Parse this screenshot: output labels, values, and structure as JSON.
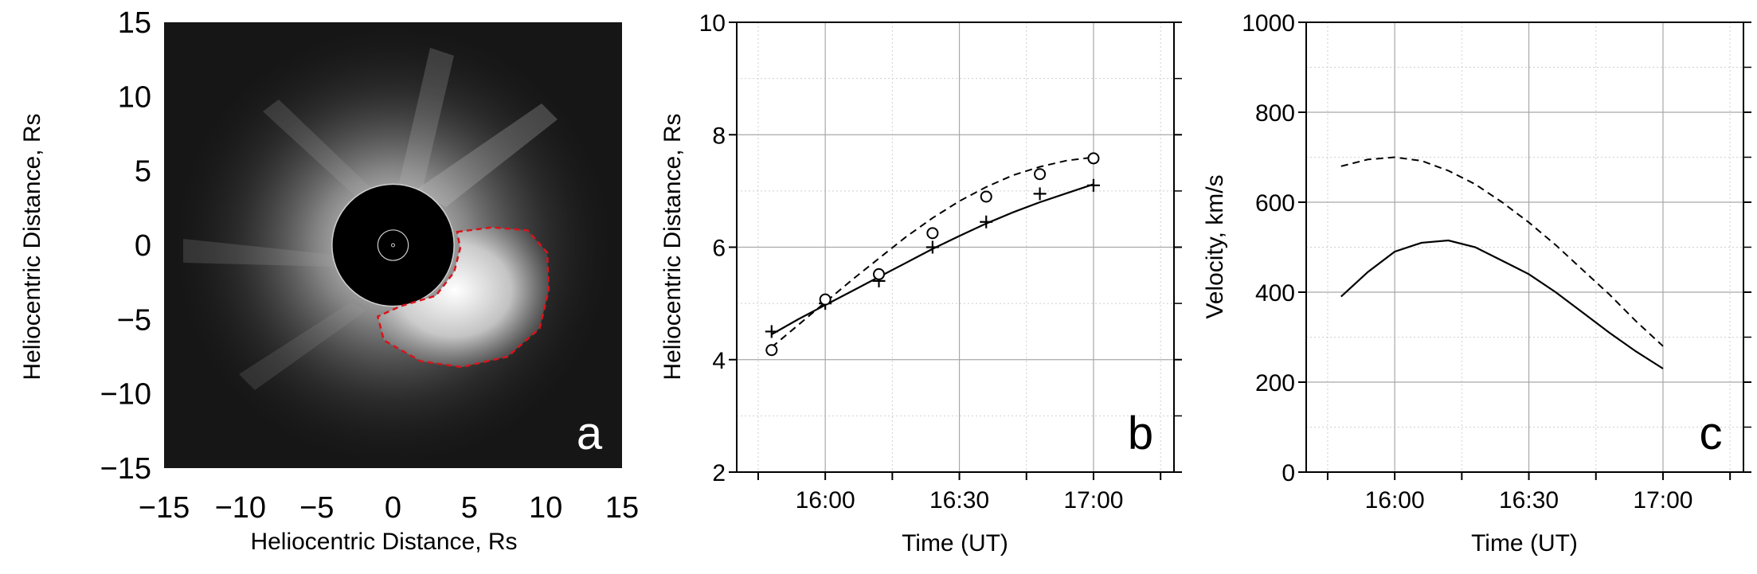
{
  "chart_data": [
    {
      "type": "image",
      "panel_label": "a",
      "xlabel": "Heliocentric Distance, Rs",
      "ylabel": "Heliocentric Distance, Rs",
      "xlim": [
        -15,
        15
      ],
      "ylim": [
        -15,
        15
      ],
      "xticks": [
        -15,
        -10,
        -5,
        0,
        5,
        10,
        15
      ],
      "yticks": [
        15,
        10,
        5,
        0,
        -5,
        -10,
        -15
      ],
      "tick_labels_x": [
        "−15",
        "−10",
        "−5",
        "0",
        "5",
        "10",
        "15"
      ],
      "tick_labels_y": [
        "15",
        "10",
        "5",
        "0",
        "−5",
        "−10",
        "−15"
      ],
      "occulter_radius": 4,
      "cme_outline_color": "#d9141b",
      "cme_outline": [
        [
          4.2,
          0.9
        ],
        [
          6.5,
          1.2
        ],
        [
          8.8,
          1.0
        ],
        [
          10.1,
          -0.5
        ],
        [
          10.2,
          -3.0
        ],
        [
          9.6,
          -5.6
        ],
        [
          7.5,
          -7.5
        ],
        [
          4.5,
          -8.2
        ],
        [
          1.8,
          -7.8
        ],
        [
          -0.6,
          -6.4
        ],
        [
          -1.0,
          -4.8
        ],
        [
          0.5,
          -4.1
        ],
        [
          2.8,
          -3.4
        ],
        [
          4.0,
          -1.8
        ],
        [
          4.4,
          -0.2
        ],
        [
          4.2,
          0.9
        ]
      ]
    },
    {
      "type": "line",
      "panel_label": "b",
      "xlabel": "Time (UT)",
      "ylabel": "Heliocentric Distance, Rs",
      "xlim": [
        15.67,
        17.3
      ],
      "ylim": [
        2,
        10
      ],
      "xticks": [
        16.0,
        16.5,
        17.0
      ],
      "tick_labels_x": [
        "16:00",
        "16:30",
        "17:00"
      ],
      "yticks": [
        2,
        4,
        6,
        8,
        10
      ],
      "series": [
        {
          "style": "solid",
          "marker": "+",
          "x": [
            15.8,
            16.0,
            16.2,
            16.4,
            16.6,
            16.8,
            17.0
          ],
          "y": [
            4.5,
            5.0,
            5.4,
            6.0,
            6.45,
            6.95,
            7.1
          ]
        },
        {
          "style": "dashed",
          "marker": "o",
          "x": [
            15.8,
            16.0,
            16.2,
            16.4,
            16.6,
            16.8,
            17.0
          ],
          "y": [
            4.17,
            5.07,
            5.52,
            6.25,
            6.9,
            7.3,
            7.58
          ]
        }
      ],
      "fits": [
        {
          "style": "solid",
          "x": [
            15.8,
            15.9,
            16.0,
            16.1,
            16.2,
            16.3,
            16.4,
            16.5,
            16.6,
            16.7,
            16.8,
            16.9,
            17.0
          ],
          "y": [
            4.45,
            4.72,
            4.97,
            5.22,
            5.47,
            5.72,
            5.97,
            6.2,
            6.42,
            6.62,
            6.8,
            6.96,
            7.12
          ]
        },
        {
          "style": "dashed",
          "x": [
            15.8,
            15.9,
            16.0,
            16.1,
            16.2,
            16.3,
            16.4,
            16.5,
            16.6,
            16.7,
            16.8,
            16.9,
            17.0
          ],
          "y": [
            4.22,
            4.62,
            5.02,
            5.42,
            5.8,
            6.18,
            6.52,
            6.82,
            7.07,
            7.28,
            7.43,
            7.54,
            7.6
          ]
        }
      ]
    },
    {
      "type": "line",
      "panel_label": "c",
      "xlabel": "Time (UT)",
      "ylabel": "Velocity, km/s",
      "xlim": [
        15.67,
        17.3
      ],
      "ylim": [
        0,
        1000
      ],
      "xticks": [
        16.0,
        16.5,
        17.0
      ],
      "tick_labels_x": [
        "16:00",
        "16:30",
        "17:00"
      ],
      "yticks": [
        0,
        200,
        400,
        600,
        800,
        1000
      ],
      "series": [
        {
          "style": "solid",
          "x": [
            15.8,
            15.9,
            16.0,
            16.1,
            16.2,
            16.3,
            16.4,
            16.5,
            16.6,
            16.7,
            16.8,
            16.9,
            17.0
          ],
          "y": [
            390,
            445,
            490,
            510,
            515,
            500,
            470,
            440,
            400,
            355,
            310,
            268,
            230
          ]
        },
        {
          "style": "dashed",
          "x": [
            15.8,
            15.9,
            16.0,
            16.1,
            16.2,
            16.3,
            16.4,
            16.5,
            16.6,
            16.7,
            16.8,
            16.9,
            17.0
          ],
          "y": [
            680,
            695,
            700,
            692,
            670,
            640,
            600,
            555,
            505,
            450,
            395,
            335,
            280
          ]
        }
      ]
    }
  ]
}
